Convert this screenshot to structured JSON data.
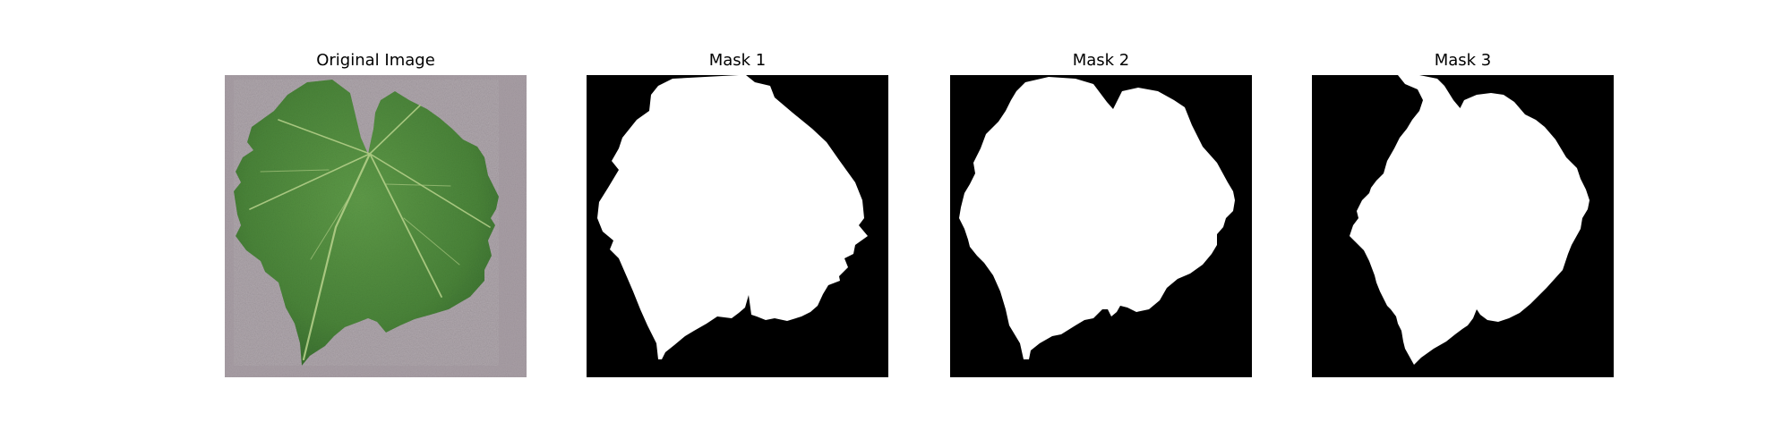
{
  "figure": {
    "panels": [
      {
        "title": "Original Image",
        "content": "leaf-photo"
      },
      {
        "title": "Mask 1",
        "content": "binary-mask"
      },
      {
        "title": "Mask 2",
        "content": "binary-mask"
      },
      {
        "title": "Mask 3",
        "content": "binary-mask"
      }
    ],
    "colors": {
      "mask_background": "#000000",
      "mask_foreground": "#ffffff",
      "photo_background": "#a79ca3",
      "leaf_green": "#4f8b3c",
      "leaf_dark": "#356b2b",
      "vein_light": "#b6d18f"
    }
  }
}
